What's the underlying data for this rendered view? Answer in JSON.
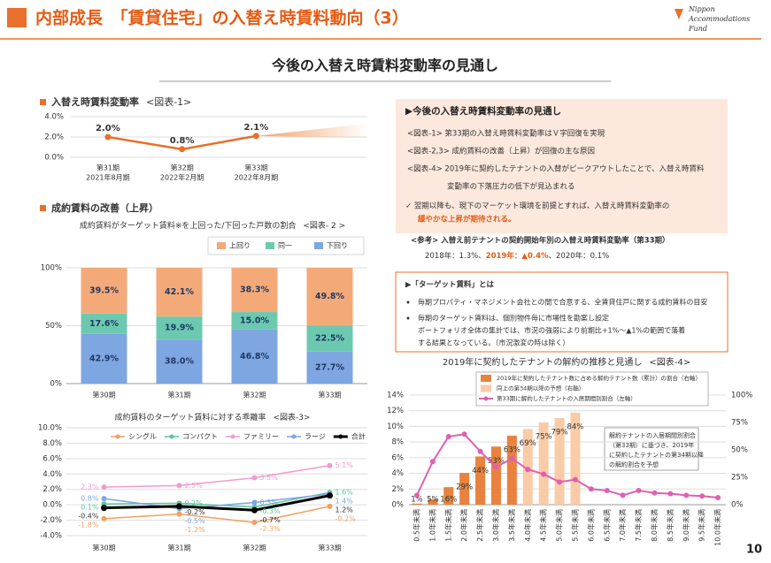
{
  "header": {
    "title": "内部成長　「賃貸住宅」の入替え時賃料動向（3）",
    "logo": [
      "Nippon",
      "Accommodations",
      "Fund"
    ],
    "page": "10"
  },
  "subtitle": "今後の入替え時賃料変動率の見通し",
  "section_2": "成約賃料の改善（上昇）",
  "outlook": {
    "heading": "▶今後の入替え時賃料変動率の見通し",
    "items": [
      [
        "<図表-1> 第33期の入替え時賃料変動率はＶ字回復を実現"
      ],
      [
        "<図表-2,3> 成約賃料の改善（上昇）が回復の主な原因"
      ],
      [
        "<図表-4> 2019年に契約したテナントの入替がピークアウトしたことで、入替え時賃料",
        "変動率の下落圧力の低下が見込まれる"
      ]
    ],
    "conclusion": [
      "✓ 翌期以降も、現下のマーケット環境を前提とすれば、入替え時賃料変動率の",
      "緩やかな上昇が期待される。"
    ]
  },
  "reference": {
    "title": "<参考> 入替え前テナントの契約開始年別の入替え時賃料変動率（第33期）",
    "parts": [
      "2018年：1.3%、",
      "2019年：▲0.4%",
      "、2020年：0.1%"
    ]
  },
  "target_rent": {
    "heading": "▶「ターゲット賃料」とは",
    "bullets": [
      [
        "毎期プロパティ・マネジメント会社との間で合意する、全賃貸住戸に関する成約賃料の目安"
      ],
      [
        "毎期のターゲット賃料は、個別物件毎に市場性を勘案し設定",
        "ボートフォリオ全体の集計では、市況の強弱により前期比+1%～▲1%の範囲で落着",
        "する結果となっている。（市況激変の時は除く）"
      ]
    ]
  },
  "chart_data": [
    {
      "type": "line",
      "title": "入替え時賃料変動率",
      "title_ref": "<図表-1>",
      "categories": [
        "第31期",
        "第32期",
        "第33期"
      ],
      "category_periods": [
        "2021年8月期",
        "2022年2月期",
        "2022年8月期"
      ],
      "values": [
        2.0,
        0.8,
        2.1
      ],
      "value_labels": [
        "2.0%",
        "0.8%",
        "2.1%"
      ],
      "color": "#e8702a",
      "ylim": [
        0,
        4
      ],
      "yticks": [
        {
          "value": 0,
          "label": "0.0%"
        },
        {
          "value": 2,
          "label": "2.0%"
        },
        {
          "value": 4,
          "label": "4.0%"
        }
      ],
      "grid": true
    },
    {
      "type": "stacked_bar",
      "title": "成約賃料がターゲット賃料※を上回った/下回った戸数の割合",
      "title_ref": "<図表- 2 >",
      "categories": [
        "第30期",
        "第31期",
        "第32期",
        "第33期"
      ],
      "series": [
        {
          "name": "下回り",
          "color": "#7ea6e0",
          "values": [
            42.9,
            38.0,
            46.8,
            27.7
          ],
          "value_labels": [
            "42.9%",
            "38.0%",
            "46.8%",
            "27.7%"
          ]
        },
        {
          "name": "同一",
          "color": "#6cc9b0",
          "values": [
            17.6,
            19.9,
            15.0,
            22.5
          ],
          "value_labels": [
            "17.6%",
            "19.9%",
            "15.0%",
            "22.5%"
          ]
        },
        {
          "name": "上回り",
          "color": "#f4aa78",
          "values": [
            39.5,
            42.1,
            38.3,
            49.8
          ],
          "value_labels": [
            "39.5%",
            "42.1%",
            "38.3%",
            "49.8%"
          ]
        }
      ],
      "ylim": [
        0,
        100
      ],
      "yticks": [
        {
          "value": 0,
          "label": "0%"
        },
        {
          "value": 50,
          "label": "50%"
        },
        {
          "value": 100,
          "label": "100%"
        }
      ],
      "grid": true
    },
    {
      "type": "line",
      "title": "成約賃料のターゲット賃料に対する乖離率",
      "title_ref": "<図表-3>",
      "categories": [
        "第30期",
        "第31期",
        "第32期",
        "第33期"
      ],
      "series": [
        {
          "name": "シングル",
          "color": "#f0a060",
          "values": [
            -1.8,
            -1.2,
            -2.3,
            -0.2
          ],
          "value_labels": [
            "-1.8%",
            "-1.2%",
            "-2.3%",
            "-0.2%"
          ]
        },
        {
          "name": "コンパクト",
          "color": "#5cc49c",
          "values": [
            0.1,
            0.2,
            -0.3,
            1.6
          ],
          "value_labels": [
            "0.1%",
            "0.2%",
            "-0.3%",
            "1.6%"
          ]
        },
        {
          "name": "ファミリー",
          "color": "#f29ad0",
          "values": [
            2.3,
            2.5,
            3.5,
            5.1
          ],
          "value_labels": [
            "2.3%",
            "2.5%",
            "3.5%",
            "5.1%"
          ]
        },
        {
          "name": "ラージ",
          "color": "#7ea6e0",
          "values": [
            0.8,
            -0.5,
            0.3,
            1.4
          ],
          "value_labels": [
            "0.8%",
            "-0.5%",
            "0.3%",
            "1.4%"
          ]
        },
        {
          "name": "合計",
          "color": "#000000",
          "values": [
            -0.4,
            -0.2,
            -0.7,
            1.2
          ],
          "value_labels": [
            "-0.4%",
            "-0.2%",
            "-0.7%",
            "1.2%"
          ]
        }
      ],
      "ylim": [
        -4,
        10
      ],
      "yticks": [
        {
          "value": -4,
          "label": "-4.0%"
        },
        {
          "value": -2,
          "label": "-2.0%"
        },
        {
          "value": 0,
          "label": "0.0%"
        },
        {
          "value": 2,
          "label": "2.0%"
        },
        {
          "value": 4,
          "label": "4.0%"
        },
        {
          "value": 6,
          "label": "6.0%"
        },
        {
          "value": 8,
          "label": "8.0%"
        },
        {
          "value": 10,
          "label": "10.0%"
        }
      ],
      "grid": true
    },
    {
      "type": "combo",
      "title": "2019年に契約したテナントの解約の推移と見通し",
      "title_ref": "<図表-4>",
      "categories": [
        "0.5年未満",
        "1.0年未満",
        "1.5年未満",
        "2.0年未満",
        "2.5年未満",
        "3.0年未満",
        "3.5年未満",
        "4.0年未満",
        "4.5年未満",
        "5.0年未満",
        "5.5年未満",
        "6.0年未満",
        "6.5年未満",
        "7.0年未満",
        "7.5年未満",
        "8.0年未満",
        "8.5年未満",
        "9.0年未満",
        "9.5年未満",
        "10.0年未満"
      ],
      "series": [
        {
          "name": "2019年に契約したテナント数に占める解約テナント数（累計）の割合（右軸）",
          "type": "bar",
          "axis": "y2",
          "color": "#e8823e",
          "values": [
            1,
            5,
            16,
            29,
            44,
            53,
            63,
            null,
            null,
            null,
            null,
            null,
            null,
            null,
            null,
            null,
            null,
            null,
            null,
            null
          ],
          "value_labels": [
            "1%",
            "5%",
            "16%",
            "29%",
            "44%",
            "53%",
            "63%",
            null,
            null,
            null,
            null,
            null,
            null,
            null,
            null,
            null,
            null,
            null,
            null,
            null
          ]
        },
        {
          "name": "同上の第34期以降の予想（右軸）",
          "type": "bar",
          "axis": "y2",
          "color": "#f9cba7",
          "values": [
            null,
            null,
            null,
            null,
            null,
            null,
            null,
            69,
            75,
            79,
            84,
            null,
            null,
            null,
            null,
            null,
            null,
            null,
            null,
            null
          ],
          "value_labels": [
            null,
            null,
            null,
            null,
            null,
            null,
            null,
            "69%",
            "75%",
            "79%",
            "84%",
            null,
            null,
            null,
            null,
            null,
            null,
            null,
            null,
            null
          ]
        },
        {
          "name": "第33期に解約したテナントの入居期間別割合（左軸）",
          "type": "line",
          "color": "#e060b0",
          "values": [
            1.2,
            5.5,
            8.7,
            9.0,
            6.8,
            4.8,
            5.9,
            4.5,
            3.9,
            2.9,
            3.2,
            2.0,
            1.8,
            1.2,
            1.8,
            1.5,
            1.4,
            1.2,
            1.1,
            0.9
          ]
        }
      ],
      "ylim": [
        0,
        14
      ],
      "yticks": [
        {
          "value": 0,
          "label": "0%"
        },
        {
          "value": 2,
          "label": "2%"
        },
        {
          "value": 4,
          "label": "4%"
        },
        {
          "value": 6,
          "label": "6%"
        },
        {
          "value": 8,
          "label": "8%"
        },
        {
          "value": 10,
          "label": "10%"
        },
        {
          "value": 12,
          "label": "12%"
        },
        {
          "value": 14,
          "label": "14%"
        }
      ],
      "y2lim": [
        0,
        100
      ],
      "y2ticks": [
        {
          "value": 0,
          "label": "0%"
        },
        {
          "value": 25,
          "label": "25%"
        },
        {
          "value": 50,
          "label": "50%"
        },
        {
          "value": 75,
          "label": "75%"
        },
        {
          "value": 100,
          "label": "100%"
        }
      ],
      "grid": true,
      "annotation": [
        "解約テナントの入居期間別割合",
        "（第33期）に基づき、2019年",
        "に契約したテナントの第34期以降",
        "の解約割合を予想"
      ]
    }
  ]
}
